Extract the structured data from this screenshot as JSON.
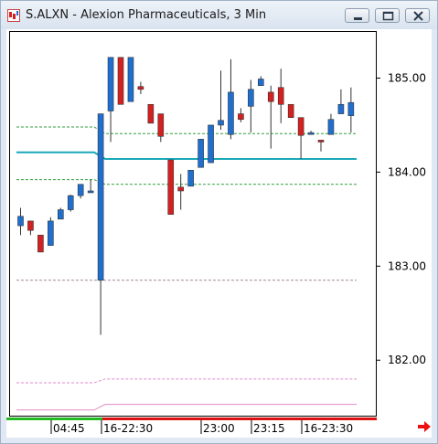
{
  "window": {
    "title": "S.ALXN - Alexion Pharmaceuticals, 3 Min",
    "buttons": [
      "minimize",
      "maximize",
      "close"
    ]
  },
  "icons": {
    "app": "candlestick-app-icon",
    "scroll": "scroll-right-arrow-icon"
  },
  "colors": {
    "up_candle": "#1e6fd0",
    "down_candle": "#d42020",
    "moving_average": "#1aa8b8",
    "band_green": "#2f9e3e",
    "band_pink": "#e08ac8",
    "band_gray": "#a08a9a",
    "session_green": "#22bb22",
    "session_red": "#dd1111",
    "scroll_arrow": "#ee1111"
  },
  "chart_data": {
    "type": "candlestick",
    "ylim": [
      181.4,
      185.5
    ],
    "y_ticks": [
      "185.00",
      "184.00",
      "183.00",
      "182.00"
    ],
    "x_ticks": [
      "04:45",
      "16-22:30",
      "23:00",
      "23:15",
      "16-23:30"
    ],
    "candles": [
      {
        "o": 183.43,
        "h": 183.62,
        "l": 183.33,
        "c": 183.53
      },
      {
        "o": 183.48,
        "h": 183.48,
        "l": 183.33,
        "c": 183.38
      },
      {
        "o": 183.33,
        "h": 183.33,
        "l": 183.15,
        "c": 183.15
      },
      {
        "o": 183.22,
        "h": 183.52,
        "l": 183.22,
        "c": 183.48
      },
      {
        "o": 183.5,
        "h": 183.62,
        "l": 183.5,
        "c": 183.6
      },
      {
        "o": 183.6,
        "h": 183.76,
        "l": 183.58,
        "c": 183.75
      },
      {
        "o": 183.75,
        "h": 183.87,
        "l": 183.72,
        "c": 183.87
      },
      {
        "o": 183.8,
        "h": 183.92,
        "l": 183.8,
        "c": 183.8
      },
      {
        "o": 182.85,
        "h": 184.62,
        "l": 182.27,
        "c": 184.62
      },
      {
        "o": 184.65,
        "h": 185.22,
        "l": 184.32,
        "c": 185.22
      },
      {
        "o": 185.22,
        "h": 185.22,
        "l": 184.72,
        "c": 184.72
      },
      {
        "o": 184.75,
        "h": 185.22,
        "l": 184.75,
        "c": 185.22
      },
      {
        "o": 184.91,
        "h": 184.96,
        "l": 184.83,
        "c": 184.88
      },
      {
        "o": 184.72,
        "h": 184.72,
        "l": 184.52,
        "c": 184.52
      },
      {
        "o": 184.62,
        "h": 184.62,
        "l": 184.32,
        "c": 184.38
      },
      {
        "o": 184.13,
        "h": 184.13,
        "l": 183.55,
        "c": 183.55
      },
      {
        "o": 183.84,
        "h": 183.98,
        "l": 183.6,
        "c": 183.8
      },
      {
        "o": 183.85,
        "h": 184.02,
        "l": 183.85,
        "c": 184.02
      },
      {
        "o": 184.05,
        "h": 184.35,
        "l": 184.05,
        "c": 184.35
      },
      {
        "o": 184.1,
        "h": 184.5,
        "l": 184.1,
        "c": 184.5
      },
      {
        "o": 184.5,
        "h": 185.08,
        "l": 184.45,
        "c": 184.55
      },
      {
        "o": 184.4,
        "h": 185.2,
        "l": 184.35,
        "c": 184.85
      },
      {
        "o": 184.62,
        "h": 184.68,
        "l": 184.53,
        "c": 184.56
      },
      {
        "o": 184.7,
        "h": 184.98,
        "l": 184.42,
        "c": 184.88
      },
      {
        "o": 184.92,
        "h": 185.02,
        "l": 184.92,
        "c": 184.99
      },
      {
        "o": 184.85,
        "h": 184.92,
        "l": 184.25,
        "c": 184.75
      },
      {
        "o": 184.9,
        "h": 185.1,
        "l": 184.52,
        "c": 184.72
      },
      {
        "o": 184.72,
        "h": 184.72,
        "l": 184.58,
        "c": 184.58
      },
      {
        "o": 184.58,
        "h": 184.58,
        "l": 184.14,
        "c": 184.39
      },
      {
        "o": 184.4,
        "h": 184.44,
        "l": 184.4,
        "c": 184.42
      },
      {
        "o": 184.34,
        "h": 184.34,
        "l": 184.22,
        "c": 184.32
      },
      {
        "o": 184.4,
        "h": 184.62,
        "l": 184.4,
        "c": 184.56
      },
      {
        "o": 184.62,
        "h": 184.88,
        "l": 184.62,
        "c": 184.72
      },
      {
        "o": 184.6,
        "h": 184.9,
        "l": 184.42,
        "c": 184.74
      }
    ],
    "lines": [
      {
        "role": "upper-band-green",
        "color": "#2f9e3e",
        "dash": true,
        "values_before": 184.48,
        "values_after": 184.41
      },
      {
        "role": "moving-average",
        "color": "#1aa8b8",
        "dash": false,
        "values_before": 184.21,
        "values_after": 184.14
      },
      {
        "role": "lower-band-green",
        "color": "#2f9e3e",
        "dash": true,
        "values_before": 183.92,
        "values_after": 183.87
      },
      {
        "role": "lower-band-gray",
        "color": "#a08a9a",
        "dash": true,
        "values_before": 182.85,
        "values_after": 182.85
      },
      {
        "role": "lower-band-pink",
        "color": "#e08ac8",
        "dash": true,
        "values_before": 181.76,
        "values_after": 181.8
      },
      {
        "role": "bottom-line-pink",
        "color": "#e08ac8",
        "dash": false,
        "values_before": 181.47,
        "values_after": 181.53
      }
    ]
  }
}
